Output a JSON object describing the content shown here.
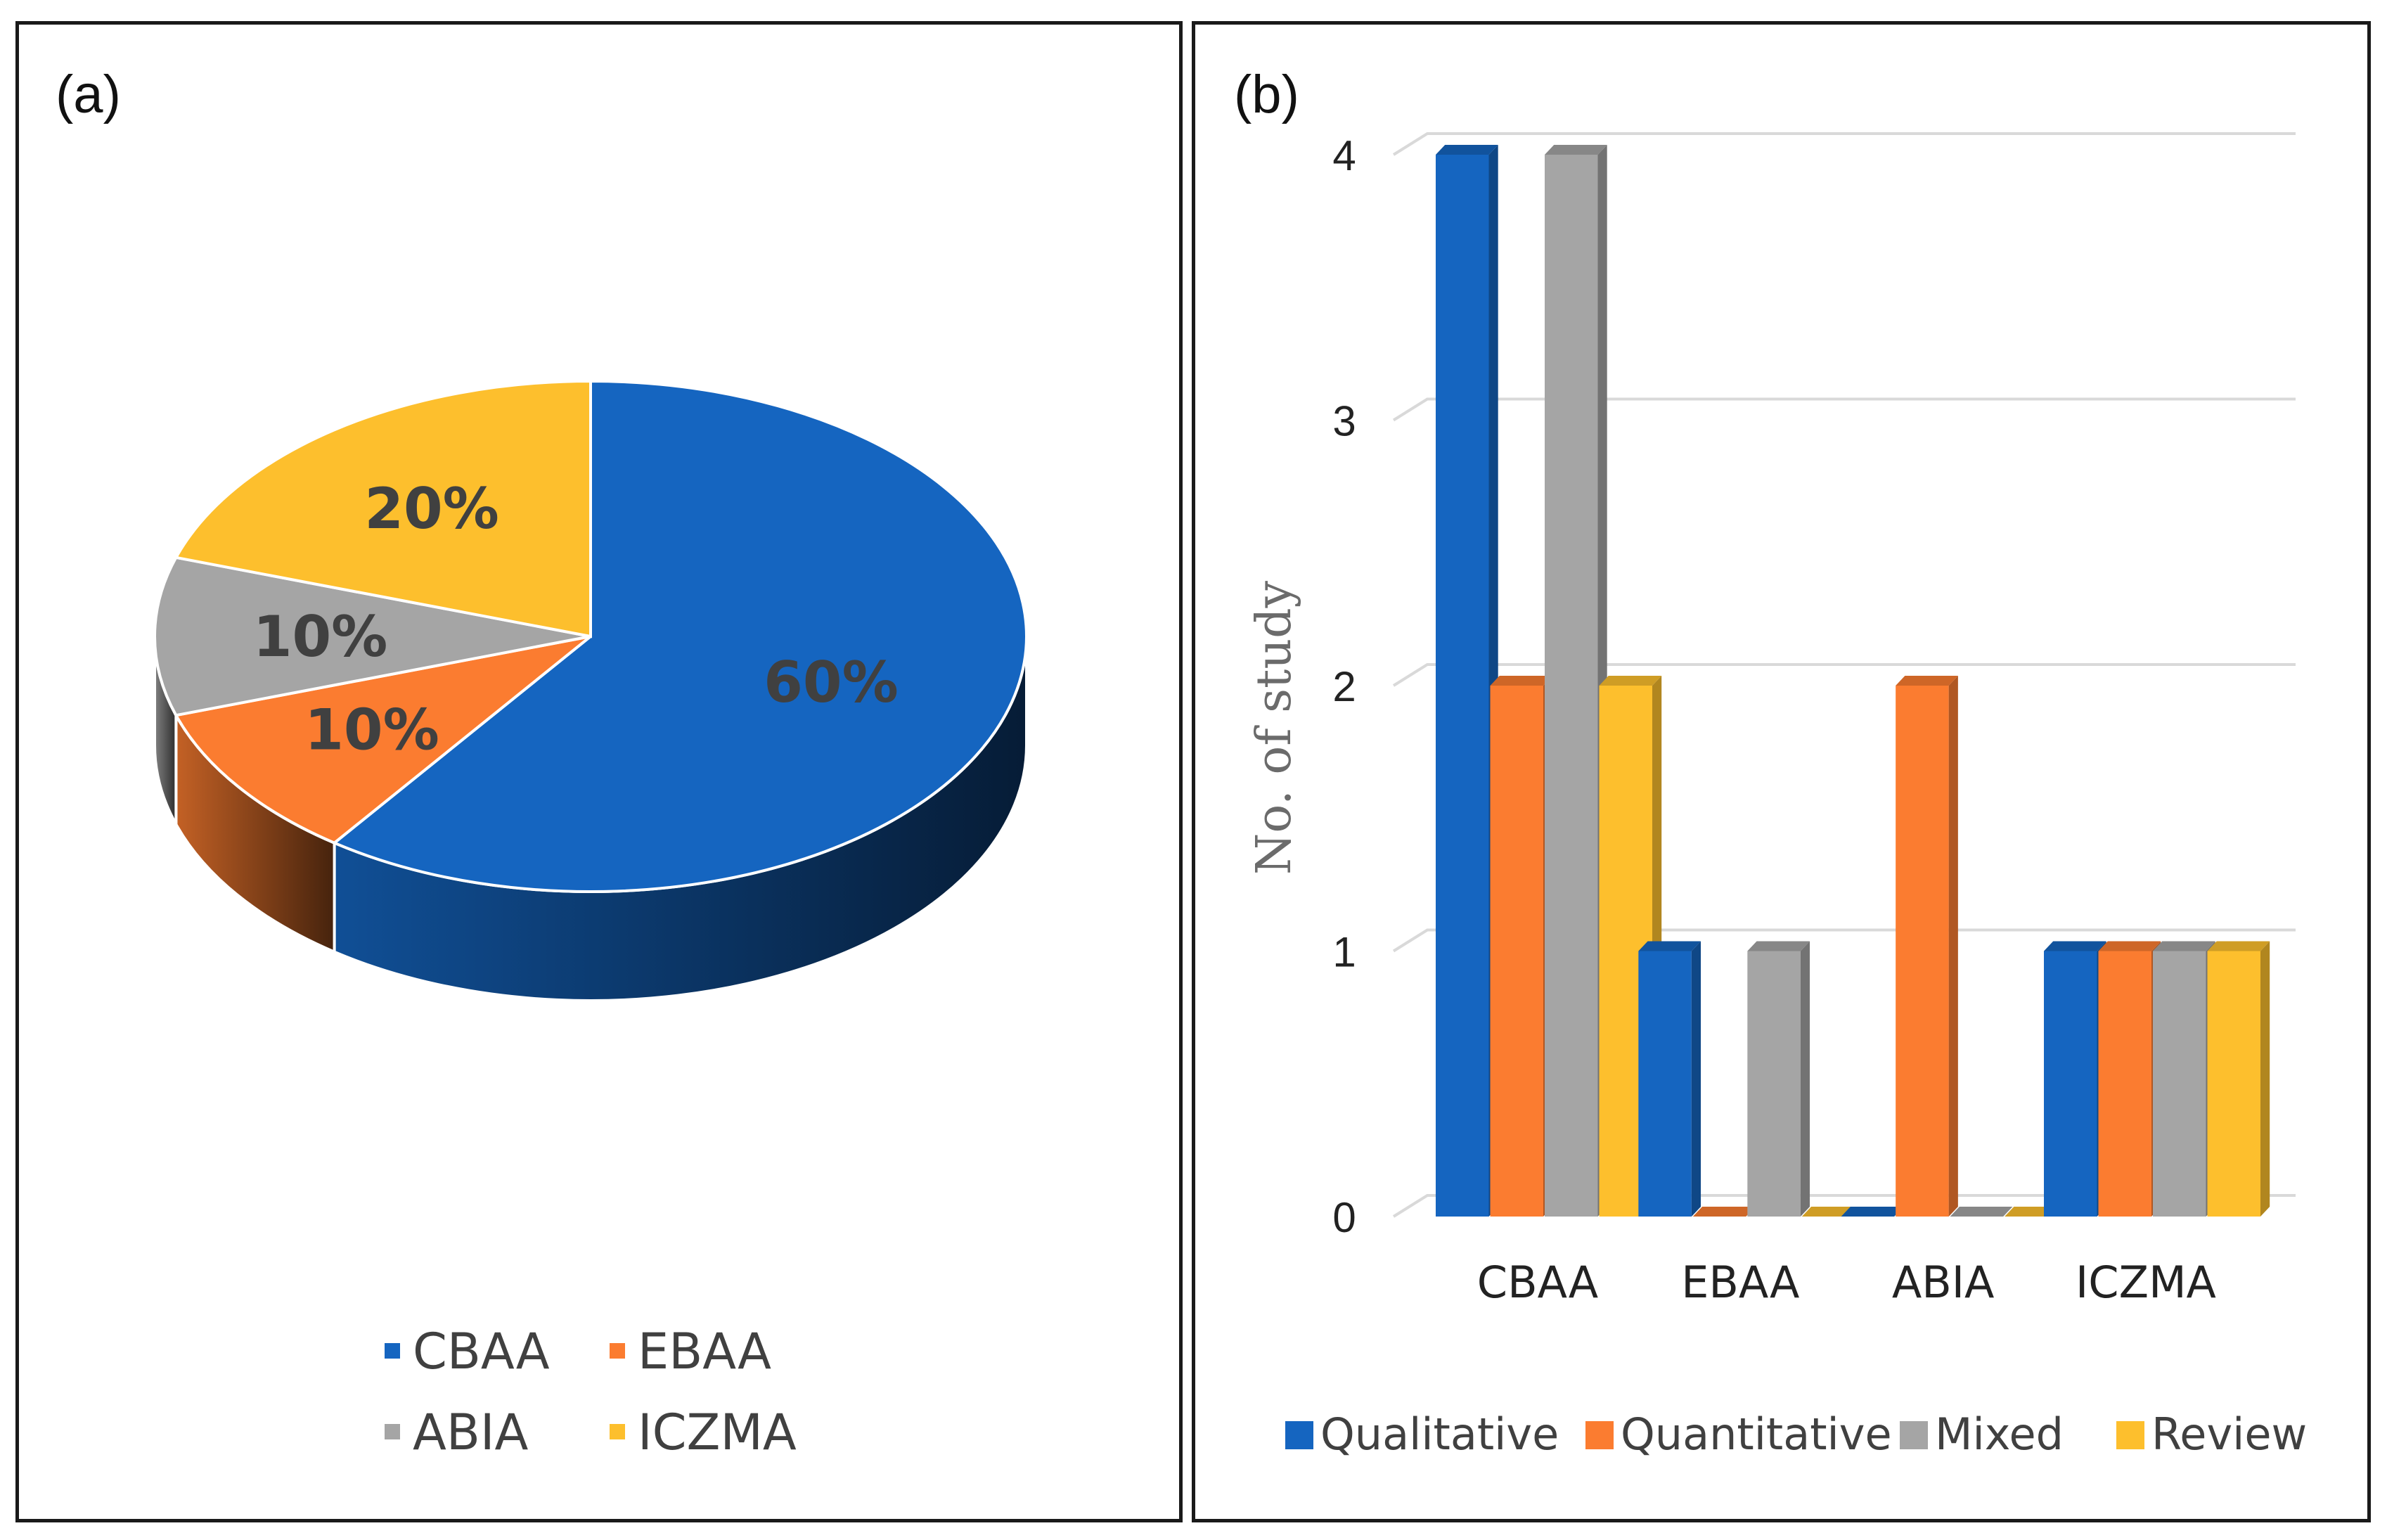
{
  "colors": {
    "blue": "#1565c0",
    "orange": "#fb7c30",
    "gray": "#a5a5a5",
    "yellow": "#fdbf2d"
  },
  "panel_a": {
    "label": "(a)"
  },
  "panel_b": {
    "label": "(b)"
  },
  "chart_data": [
    {
      "type": "pie",
      "title": "(a)",
      "categories": [
        "CBAA",
        "EBAA",
        "ABIA",
        "ICZMA"
      ],
      "values": [
        60,
        10,
        10,
        20
      ],
      "data_labels": [
        "60%",
        "10%",
        "10%",
        "20%"
      ],
      "legend": [
        "CBAA",
        "EBAA",
        "ABIA",
        "ICZMA"
      ],
      "legend_position": "bottom"
    },
    {
      "type": "bar",
      "title": "(b)",
      "categories": [
        "CBAA",
        "EBAA",
        "ABIA",
        "ICZMA"
      ],
      "series": [
        {
          "name": "Qualitative",
          "values": [
            4,
            1,
            0,
            1
          ]
        },
        {
          "name": "Quantitative",
          "values": [
            2,
            0,
            2,
            1
          ]
        },
        {
          "name": "Mixed",
          "values": [
            4,
            1,
            0,
            1
          ]
        },
        {
          "name": "Review",
          "values": [
            2,
            0,
            0,
            1
          ]
        }
      ],
      "xlabel": "",
      "ylabel": "No. of study",
      "ylim": [
        0,
        4
      ],
      "yticks": [
        "0",
        "1",
        "2",
        "3",
        "4"
      ],
      "grid": true,
      "legend_position": "bottom"
    }
  ]
}
